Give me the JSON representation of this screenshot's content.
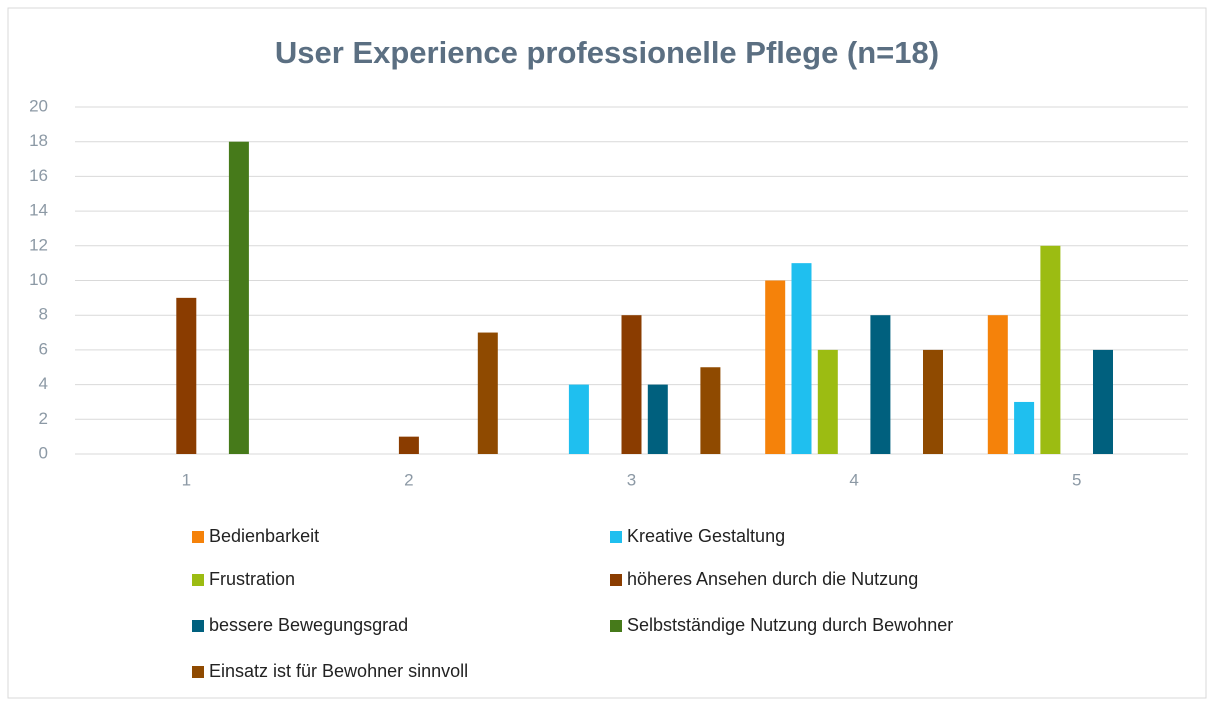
{
  "chart_data": {
    "type": "bar",
    "title": "User Experience professionelle Pflege (n=18)",
    "categories": [
      "1",
      "2",
      "3",
      "4",
      "5"
    ],
    "series": [
      {
        "name": "Bedienbarkeit",
        "color": "#f5820a",
        "values": [
          0,
          0,
          0,
          10,
          8
        ]
      },
      {
        "name": "Kreative Gestaltung",
        "color": "#1fbfef",
        "values": [
          0,
          0,
          4,
          11,
          3
        ]
      },
      {
        "name": "Frustration",
        "color": "#9cbc12",
        "values": [
          0,
          0,
          0,
          6,
          12
        ]
      },
      {
        "name": "höheres Ansehen durch die Nutzung",
        "color": "#8a3c00",
        "values": [
          9,
          1,
          8,
          0,
          0
        ]
      },
      {
        "name": "bessere Bewegungsgrad",
        "color": "#00607e",
        "values": [
          0,
          0,
          4,
          8,
          6
        ]
      },
      {
        "name": "Selbstständige Nutzung durch Bewohner",
        "color": "#467a1a",
        "values": [
          18,
          0,
          0,
          0,
          0
        ]
      },
      {
        "name": "Einsatz ist für Bewohner sinnvoll",
        "color": "#8f4a00",
        "values": [
          0,
          7,
          5,
          6,
          0
        ]
      }
    ],
    "ylim": [
      0,
      20
    ],
    "yticks": [
      0,
      2,
      4,
      6,
      8,
      10,
      12,
      14,
      16,
      18,
      20
    ],
    "grid": true,
    "legend": "bottom"
  }
}
